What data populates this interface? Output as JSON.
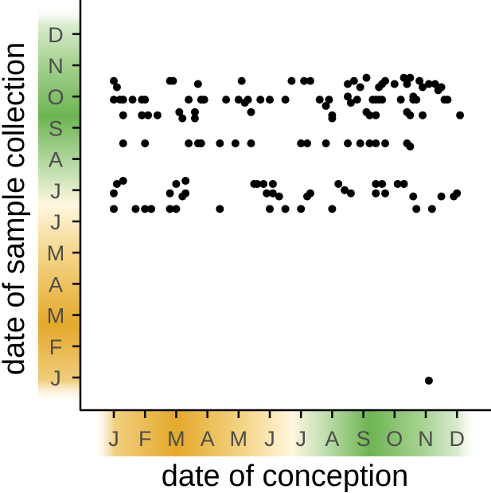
{
  "chart_data": {
    "type": "scatter",
    "xlabel": "date of conception",
    "ylabel": "date of sample collection",
    "x_tick_labels": [
      "J",
      "F",
      "M",
      "A",
      "M",
      "J",
      "J",
      "A",
      "S",
      "O",
      "N",
      "D"
    ],
    "y_tick_labels": [
      "J",
      "F",
      "M",
      "A",
      "M",
      "J",
      "J",
      "A",
      "S",
      "O",
      "N",
      "D"
    ],
    "x_unit": "month index (1 = Jan)",
    "y_unit": "month index (1 = Jan)",
    "xlim": [
      0.4,
      12.7
    ],
    "ylim": [
      0.8,
      12.1
    ],
    "grid": false,
    "legend": "none",
    "season_colors": {
      "green": "#5aa83a",
      "orange": "#e3a82b"
    },
    "points": [
      {
        "x": 1.0,
        "y": 10.5
      },
      {
        "x": 1.1,
        "y": 10.3
      },
      {
        "x": 1.0,
        "y": 9.9
      },
      {
        "x": 1.2,
        "y": 9.9
      },
      {
        "x": 1.3,
        "y": 9.9
      },
      {
        "x": 1.3,
        "y": 9.4
      },
      {
        "x": 1.3,
        "y": 8.5
      },
      {
        "x": 1.0,
        "y": 6.9
      },
      {
        "x": 1.1,
        "y": 7.2
      },
      {
        "x": 1.3,
        "y": 7.3
      },
      {
        "x": 1.0,
        "y": 6.4
      },
      {
        "x": 1.6,
        "y": 9.9
      },
      {
        "x": 1.9,
        "y": 9.9
      },
      {
        "x": 2.0,
        "y": 9.9
      },
      {
        "x": 1.9,
        "y": 9.4
      },
      {
        "x": 2.1,
        "y": 9.4
      },
      {
        "x": 2.4,
        "y": 9.4
      },
      {
        "x": 2.0,
        "y": 8.5
      },
      {
        "x": 1.7,
        "y": 6.4
      },
      {
        "x": 2.0,
        "y": 6.4
      },
      {
        "x": 2.2,
        "y": 6.4
      },
      {
        "x": 2.8,
        "y": 10.5
      },
      {
        "x": 2.9,
        "y": 10.5
      },
      {
        "x": 2.8,
        "y": 6.9
      },
      {
        "x": 3.0,
        "y": 7.2
      },
      {
        "x": 3.3,
        "y": 6.9
      },
      {
        "x": 3.2,
        "y": 6.8
      },
      {
        "x": 2.8,
        "y": 6.4
      },
      {
        "x": 3.0,
        "y": 6.4
      },
      {
        "x": 3.3,
        "y": 7.3
      },
      {
        "x": 3.1,
        "y": 9.5
      },
      {
        "x": 3.2,
        "y": 9.3
      },
      {
        "x": 3.4,
        "y": 9.9
      },
      {
        "x": 3.6,
        "y": 9.5
      },
      {
        "x": 3.7,
        "y": 10.4
      },
      {
        "x": 3.9,
        "y": 9.9
      },
      {
        "x": 3.6,
        "y": 9.3
      },
      {
        "x": 3.7,
        "y": 8.5
      },
      {
        "x": 3.4,
        "y": 8.5
      },
      {
        "x": 3.8,
        "y": 9.9
      },
      {
        "x": 3.8,
        "y": 8.5
      },
      {
        "x": 4.4,
        "y": 6.4
      },
      {
        "x": 4.6,
        "y": 9.9
      },
      {
        "x": 5.1,
        "y": 10.5
      },
      {
        "x": 5.0,
        "y": 9.9
      },
      {
        "x": 4.4,
        "y": 8.5
      },
      {
        "x": 4.9,
        "y": 8.5
      },
      {
        "x": 5.3,
        "y": 9.9
      },
      {
        "x": 5.4,
        "y": 9.5
      },
      {
        "x": 5.2,
        "y": 9.8
      },
      {
        "x": 5.4,
        "y": 8.5
      },
      {
        "x": 5.7,
        "y": 9.9
      },
      {
        "x": 6.0,
        "y": 9.9
      },
      {
        "x": 6.5,
        "y": 9.9
      },
      {
        "x": 5.5,
        "y": 7.2
      },
      {
        "x": 5.6,
        "y": 7.2
      },
      {
        "x": 5.8,
        "y": 7.2
      },
      {
        "x": 5.9,
        "y": 6.9
      },
      {
        "x": 6.1,
        "y": 7.2
      },
      {
        "x": 6.1,
        "y": 6.9
      },
      {
        "x": 6.0,
        "y": 6.4
      },
      {
        "x": 6.3,
        "y": 6.8
      },
      {
        "x": 6.5,
        "y": 6.4
      },
      {
        "x": 6.7,
        "y": 10.5
      },
      {
        "x": 7.1,
        "y": 10.5
      },
      {
        "x": 7.3,
        "y": 10.5
      },
      {
        "x": 7.0,
        "y": 8.5
      },
      {
        "x": 7.2,
        "y": 8.5
      },
      {
        "x": 7.2,
        "y": 6.8
      },
      {
        "x": 7.3,
        "y": 6.9
      },
      {
        "x": 7.0,
        "y": 6.4
      },
      {
        "x": 7.6,
        "y": 9.9
      },
      {
        "x": 7.8,
        "y": 9.7
      },
      {
        "x": 7.9,
        "y": 9.9
      },
      {
        "x": 8.0,
        "y": 9.4
      },
      {
        "x": 7.8,
        "y": 8.5
      },
      {
        "x": 8.0,
        "y": 9.3
      },
      {
        "x": 8.0,
        "y": 6.4
      },
      {
        "x": 8.2,
        "y": 7.2
      },
      {
        "x": 8.6,
        "y": 6.9
      },
      {
        "x": 8.4,
        "y": 7.0
      },
      {
        "x": 8.5,
        "y": 10.0
      },
      {
        "x": 8.6,
        "y": 9.8
      },
      {
        "x": 8.5,
        "y": 10.4
      },
      {
        "x": 8.7,
        "y": 10.5
      },
      {
        "x": 8.5,
        "y": 8.5
      },
      {
        "x": 8.9,
        "y": 8.5
      },
      {
        "x": 8.9,
        "y": 10.3
      },
      {
        "x": 8.8,
        "y": 9.9
      },
      {
        "x": 9.1,
        "y": 10.6
      },
      {
        "x": 9.2,
        "y": 9.4
      },
      {
        "x": 9.1,
        "y": 9.5
      },
      {
        "x": 9.4,
        "y": 9.9
      },
      {
        "x": 9.2,
        "y": 8.5
      },
      {
        "x": 9.3,
        "y": 9.9
      },
      {
        "x": 9.4,
        "y": 9.4
      },
      {
        "x": 9.5,
        "y": 10.3
      },
      {
        "x": 9.6,
        "y": 9.9
      },
      {
        "x": 9.6,
        "y": 10.4
      },
      {
        "x": 9.7,
        "y": 10.5
      },
      {
        "x": 9.5,
        "y": 9.9
      },
      {
        "x": 9.4,
        "y": 8.5
      },
      {
        "x": 9.7,
        "y": 8.5
      },
      {
        "x": 9.6,
        "y": 7.2
      },
      {
        "x": 9.7,
        "y": 6.9
      },
      {
        "x": 9.4,
        "y": 7.2
      },
      {
        "x": 9.4,
        "y": 6.9
      },
      {
        "x": 10.0,
        "y": 10.4
      },
      {
        "x": 10.3,
        "y": 10.6
      },
      {
        "x": 10.5,
        "y": 10.6
      },
      {
        "x": 10.4,
        "y": 10.4
      },
      {
        "x": 10.2,
        "y": 9.9
      },
      {
        "x": 10.4,
        "y": 9.5
      },
      {
        "x": 10.5,
        "y": 9.4
      },
      {
        "x": 10.6,
        "y": 10.0
      },
      {
        "x": 10.7,
        "y": 9.9
      },
      {
        "x": 10.5,
        "y": 8.4
      },
      {
        "x": 10.4,
        "y": 8.5
      },
      {
        "x": 10.6,
        "y": 9.9
      },
      {
        "x": 10.8,
        "y": 10.5
      },
      {
        "x": 10.9,
        "y": 9.4
      },
      {
        "x": 10.9,
        "y": 10.3
      },
      {
        "x": 10.7,
        "y": 6.4
      },
      {
        "x": 11.2,
        "y": 6.4
      },
      {
        "x": 11.5,
        "y": 6.8
      },
      {
        "x": 11.1,
        "y": 10.4
      },
      {
        "x": 11.3,
        "y": 10.4
      },
      {
        "x": 11.5,
        "y": 10.3
      },
      {
        "x": 11.4,
        "y": 10.2
      },
      {
        "x": 11.6,
        "y": 9.9
      },
      {
        "x": 11.7,
        "y": 9.9
      },
      {
        "x": 12.1,
        "y": 9.4
      },
      {
        "x": 12.0,
        "y": 6.9
      },
      {
        "x": 11.9,
        "y": 6.8
      },
      {
        "x": 10.1,
        "y": 7.2
      },
      {
        "x": 10.3,
        "y": 7.2
      },
      {
        "x": 10.6,
        "y": 6.8
      },
      {
        "x": 11.1,
        "y": 0.9
      }
    ]
  }
}
